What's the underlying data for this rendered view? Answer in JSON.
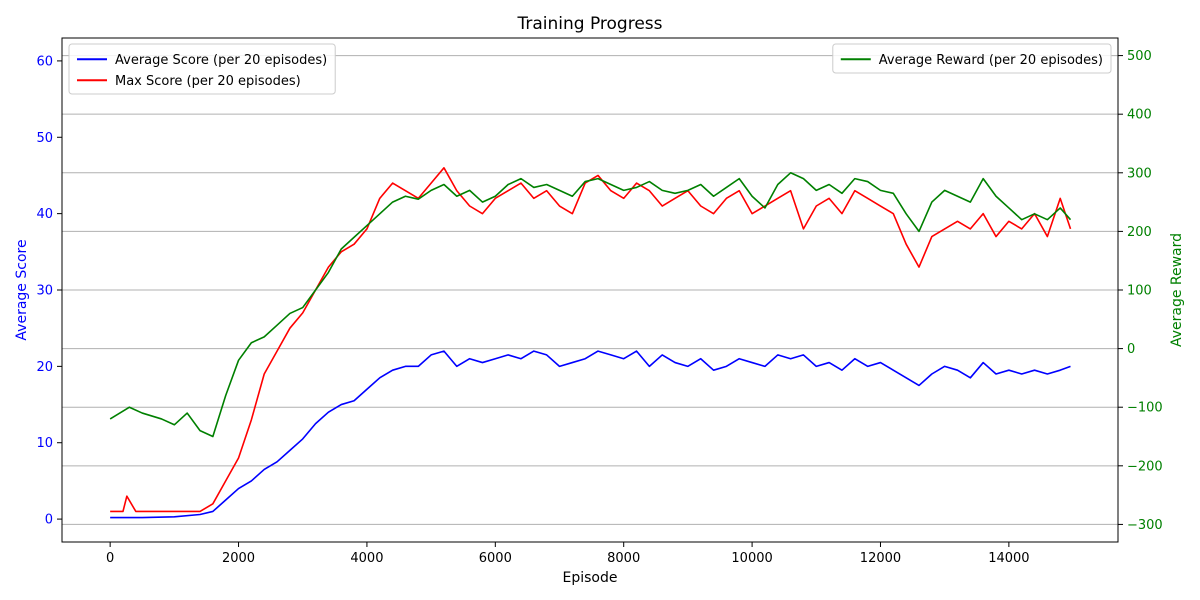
{
  "chart_data": {
    "type": "line",
    "title": "Training Progress",
    "xlabel": "Episode",
    "ylabel_left": "Average Score",
    "ylabel_right": "Average Reward",
    "xlim": [
      -750,
      15700
    ],
    "ylim_left": [
      -3,
      63
    ],
    "ylim_right": [
      -330,
      530
    ],
    "x_ticks": [
      0,
      2000,
      4000,
      6000,
      8000,
      10000,
      12000,
      14000
    ],
    "x_tick_labels": [
      "0",
      "2000",
      "4000",
      "6000",
      "8000",
      "10000",
      "12000",
      "14000"
    ],
    "y_left_ticks": [
      0,
      10,
      20,
      30,
      40,
      50,
      60
    ],
    "y_left_tick_labels": [
      "0",
      "10",
      "20",
      "30",
      "40",
      "50",
      "60"
    ],
    "y_right_ticks": [
      -300,
      -200,
      -100,
      0,
      100,
      200,
      300,
      400,
      500
    ],
    "y_right_tick_labels": [
      "−300",
      "−200",
      "−100",
      "0",
      "100",
      "200",
      "300",
      "400",
      "500"
    ],
    "grid": "horizontal (right axis)",
    "legend_left_placement": "top-left",
    "legend_right_placement": "top-right",
    "colors": {
      "avg_score": "#0000ff",
      "max_score": "#ff0000",
      "avg_reward": "#008000",
      "left_axis": "#0000ff",
      "right_axis": "#008000"
    },
    "series": [
      {
        "name": "Average Score (per 20 episodes)",
        "axis": "left",
        "color": "#0000ff",
        "x": [
          0,
          500,
          1000,
          1400,
          1600,
          1800,
          2000,
          2200,
          2400,
          2600,
          2800,
          3000,
          3200,
          3400,
          3600,
          3800,
          4000,
          4200,
          4400,
          4600,
          4800,
          5000,
          5200,
          5400,
          5600,
          5800,
          6000,
          6200,
          6400,
          6600,
          6800,
          7000,
          7200,
          7400,
          7600,
          7800,
          8000,
          8200,
          8400,
          8600,
          8800,
          9000,
          9200,
          9400,
          9600,
          9800,
          10000,
          10200,
          10400,
          10600,
          10800,
          11000,
          11200,
          11400,
          11600,
          11800,
          12000,
          12200,
          12400,
          12600,
          12800,
          13000,
          13200,
          13400,
          13600,
          13800,
          14000,
          14200,
          14400,
          14600,
          14800,
          14960
        ],
        "values": [
          0.2,
          0.2,
          0.3,
          0.6,
          1.0,
          2.5,
          4.0,
          5.0,
          6.5,
          7.5,
          9.0,
          10.5,
          12.5,
          14.0,
          15.0,
          15.5,
          17.0,
          18.5,
          19.5,
          20.0,
          20.0,
          21.5,
          22.0,
          20.0,
          21.0,
          20.5,
          21.0,
          21.5,
          21.0,
          22.0,
          21.5,
          20.0,
          20.5,
          21.0,
          22.0,
          21.5,
          21.0,
          22.0,
          20.0,
          21.5,
          20.5,
          20.0,
          21.0,
          19.5,
          20.0,
          21.0,
          20.5,
          20.0,
          21.5,
          21.0,
          21.5,
          20.0,
          20.5,
          19.5,
          21.0,
          20.0,
          20.5,
          19.5,
          18.5,
          17.5,
          19.0,
          20.0,
          19.5,
          18.5,
          20.5,
          19.0,
          19.5,
          19.0,
          19.5,
          19.0,
          19.5,
          20.0
        ]
      },
      {
        "name": "Max Score (per 20 episodes)",
        "axis": "left",
        "color": "#ff0000",
        "x": [
          0,
          200,
          260,
          400,
          600,
          800,
          1000,
          1200,
          1400,
          1600,
          1800,
          2000,
          2200,
          2400,
          2600,
          2800,
          3000,
          3200,
          3400,
          3600,
          3800,
          4000,
          4200,
          4400,
          4600,
          4800,
          5000,
          5200,
          5400,
          5600,
          5800,
          6000,
          6200,
          6400,
          6600,
          6800,
          7000,
          7200,
          7400,
          7600,
          7800,
          8000,
          8200,
          8400,
          8600,
          8800,
          9000,
          9200,
          9400,
          9600,
          9800,
          10000,
          10200,
          10400,
          10600,
          10800,
          11000,
          11200,
          11400,
          11600,
          11800,
          12000,
          12200,
          12400,
          12600,
          12800,
          13000,
          13200,
          13400,
          13600,
          13800,
          14000,
          14200,
          14400,
          14600,
          14800,
          14960
        ],
        "values": [
          1,
          1,
          3,
          1,
          1,
          1,
          1,
          1,
          1,
          2,
          5,
          8,
          13,
          19,
          22,
          25,
          27,
          30,
          33,
          35,
          36,
          38,
          42,
          44,
          43,
          42,
          44,
          46,
          43,
          41,
          40,
          42,
          43,
          44,
          42,
          43,
          41,
          40,
          44,
          45,
          43,
          42,
          44,
          43,
          41,
          42,
          43,
          41,
          40,
          42,
          43,
          40,
          41,
          42,
          43,
          38,
          41,
          42,
          40,
          43,
          42,
          41,
          40,
          36,
          33,
          37,
          38,
          39,
          38,
          40,
          37,
          39,
          38,
          40,
          37,
          42,
          38
        ]
      },
      {
        "name": "Average Reward (per 20 episodes)",
        "axis": "right",
        "color": "#008000",
        "x": [
          0,
          300,
          500,
          800,
          1000,
          1200,
          1400,
          1600,
          1800,
          2000,
          2200,
          2400,
          2600,
          2800,
          3000,
          3200,
          3400,
          3600,
          3800,
          4000,
          4200,
          4400,
          4600,
          4800,
          5000,
          5200,
          5400,
          5600,
          5800,
          6000,
          6200,
          6400,
          6600,
          6800,
          7000,
          7200,
          7400,
          7600,
          7800,
          8000,
          8200,
          8400,
          8600,
          8800,
          9000,
          9200,
          9400,
          9600,
          9800,
          10000,
          10200,
          10400,
          10600,
          10800,
          11000,
          11200,
          11400,
          11600,
          11800,
          12000,
          12200,
          12400,
          12600,
          12800,
          13000,
          13200,
          13400,
          13600,
          13800,
          14000,
          14200,
          14400,
          14600,
          14800,
          14960
        ],
        "values": [
          -120,
          -100,
          -110,
          -120,
          -130,
          -110,
          -140,
          -150,
          -80,
          -20,
          10,
          20,
          40,
          60,
          70,
          100,
          130,
          170,
          190,
          210,
          230,
          250,
          260,
          255,
          270,
          280,
          260,
          270,
          250,
          260,
          280,
          290,
          275,
          280,
          270,
          260,
          285,
          290,
          280,
          270,
          275,
          285,
          270,
          265,
          270,
          280,
          260,
          275,
          290,
          260,
          240,
          280,
          300,
          290,
          270,
          280,
          265,
          290,
          285,
          270,
          265,
          230,
          200,
          250,
          270,
          260,
          250,
          290,
          260,
          240,
          220,
          230,
          220,
          240,
          220
        ]
      }
    ]
  }
}
